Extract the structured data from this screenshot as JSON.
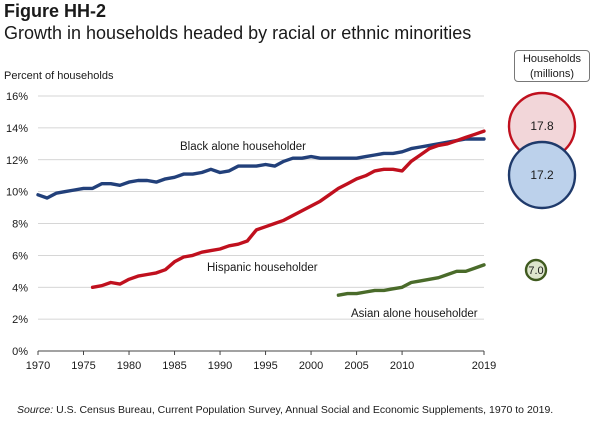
{
  "figure": {
    "label": "Figure HH-2",
    "title": "Growth in households headed by racial or ethnic minorities"
  },
  "source": {
    "prefix": "Source:",
    "text": "U.S. Census Bureau, Current Population Survey, Annual Social and Economic Supplements, 1970 to 2019."
  },
  "bubbles": {
    "header_line1": "Households",
    "header_line2": "(millions)",
    "items": [
      {
        "series": "Hispanic householder",
        "value": "17.8",
        "fill": "#f2d6d9",
        "stroke": "#c0101e"
      },
      {
        "series": "Black alone householder",
        "value": "17.2",
        "fill": "#bcd1eb",
        "stroke": "#1f3a6b"
      },
      {
        "series": "Asian alone householder",
        "value": "7.0",
        "fill": "#dde5cc",
        "stroke": "#3f5a1f"
      }
    ]
  },
  "chart_data": {
    "type": "line",
    "ylabel": "Percent of households",
    "xlabel": "",
    "ylim": [
      0,
      16
    ],
    "xlim": [
      1970,
      2019
    ],
    "yticks": [
      "0%",
      "2%",
      "4%",
      "6%",
      "8%",
      "10%",
      "12%",
      "14%",
      "16%"
    ],
    "xticks": [
      "1970",
      "1975",
      "1980",
      "1985",
      "1990",
      "1995",
      "2000",
      "2005",
      "2010",
      "2019"
    ],
    "grid": true,
    "series": [
      {
        "name": "Black alone householder",
        "color": "#22407a",
        "x": [
          1970,
          1971,
          1972,
          1973,
          1974,
          1975,
          1976,
          1977,
          1978,
          1979,
          1980,
          1981,
          1982,
          1983,
          1984,
          1985,
          1986,
          1987,
          1988,
          1989,
          1990,
          1991,
          1992,
          1993,
          1994,
          1995,
          1996,
          1997,
          1998,
          1999,
          2000,
          2001,
          2002,
          2003,
          2004,
          2005,
          2006,
          2007,
          2008,
          2009,
          2010,
          2011,
          2012,
          2013,
          2014,
          2015,
          2016,
          2017,
          2018,
          2019
        ],
        "values": [
          9.8,
          9.6,
          9.9,
          10.0,
          10.1,
          10.2,
          10.2,
          10.5,
          10.5,
          10.4,
          10.6,
          10.7,
          10.7,
          10.6,
          10.8,
          10.9,
          11.1,
          11.1,
          11.2,
          11.4,
          11.2,
          11.3,
          11.6,
          11.6,
          11.6,
          11.7,
          11.6,
          11.9,
          12.1,
          12.1,
          12.2,
          12.1,
          12.1,
          12.1,
          12.1,
          12.1,
          12.2,
          12.3,
          12.4,
          12.4,
          12.5,
          12.7,
          12.8,
          12.9,
          13.0,
          13.1,
          13.2,
          13.3,
          13.3,
          13.3
        ]
      },
      {
        "name": "Hispanic householder",
        "color": "#c0101e",
        "x": [
          1976,
          1977,
          1978,
          1979,
          1980,
          1981,
          1982,
          1983,
          1984,
          1985,
          1986,
          1987,
          1988,
          1989,
          1990,
          1991,
          1992,
          1993,
          1994,
          1995,
          1996,
          1997,
          1998,
          1999,
          2000,
          2001,
          2002,
          2003,
          2004,
          2005,
          2006,
          2007,
          2008,
          2009,
          2010,
          2011,
          2012,
          2013,
          2014,
          2015,
          2016,
          2017,
          2018,
          2019
        ],
        "values": [
          4.0,
          4.1,
          4.3,
          4.2,
          4.5,
          4.7,
          4.8,
          4.9,
          5.1,
          5.6,
          5.9,
          6.0,
          6.2,
          6.3,
          6.4,
          6.6,
          6.7,
          6.9,
          7.6,
          7.8,
          8.0,
          8.2,
          8.5,
          8.8,
          9.1,
          9.4,
          9.8,
          10.2,
          10.5,
          10.8,
          11.0,
          11.3,
          11.4,
          11.4,
          11.3,
          11.9,
          12.3,
          12.7,
          12.9,
          13.0,
          13.2,
          13.4,
          13.6,
          13.8
        ]
      },
      {
        "name": "Asian alone householder",
        "color": "#4a6b2a",
        "x": [
          2003,
          2004,
          2005,
          2006,
          2007,
          2008,
          2009,
          2010,
          2011,
          2012,
          2013,
          2014,
          2015,
          2016,
          2017,
          2018,
          2019
        ],
        "values": [
          3.5,
          3.6,
          3.6,
          3.7,
          3.8,
          3.8,
          3.9,
          4.0,
          4.3,
          4.4,
          4.5,
          4.6,
          4.8,
          5.0,
          5.0,
          5.2,
          5.4
        ]
      }
    ],
    "annotations": [
      {
        "text": "Black alone householder",
        "series": "Black alone householder"
      },
      {
        "text": "Hispanic householder",
        "series": "Hispanic householder"
      },
      {
        "text": "Asian alone householder",
        "series": "Asian alone householder"
      }
    ]
  }
}
